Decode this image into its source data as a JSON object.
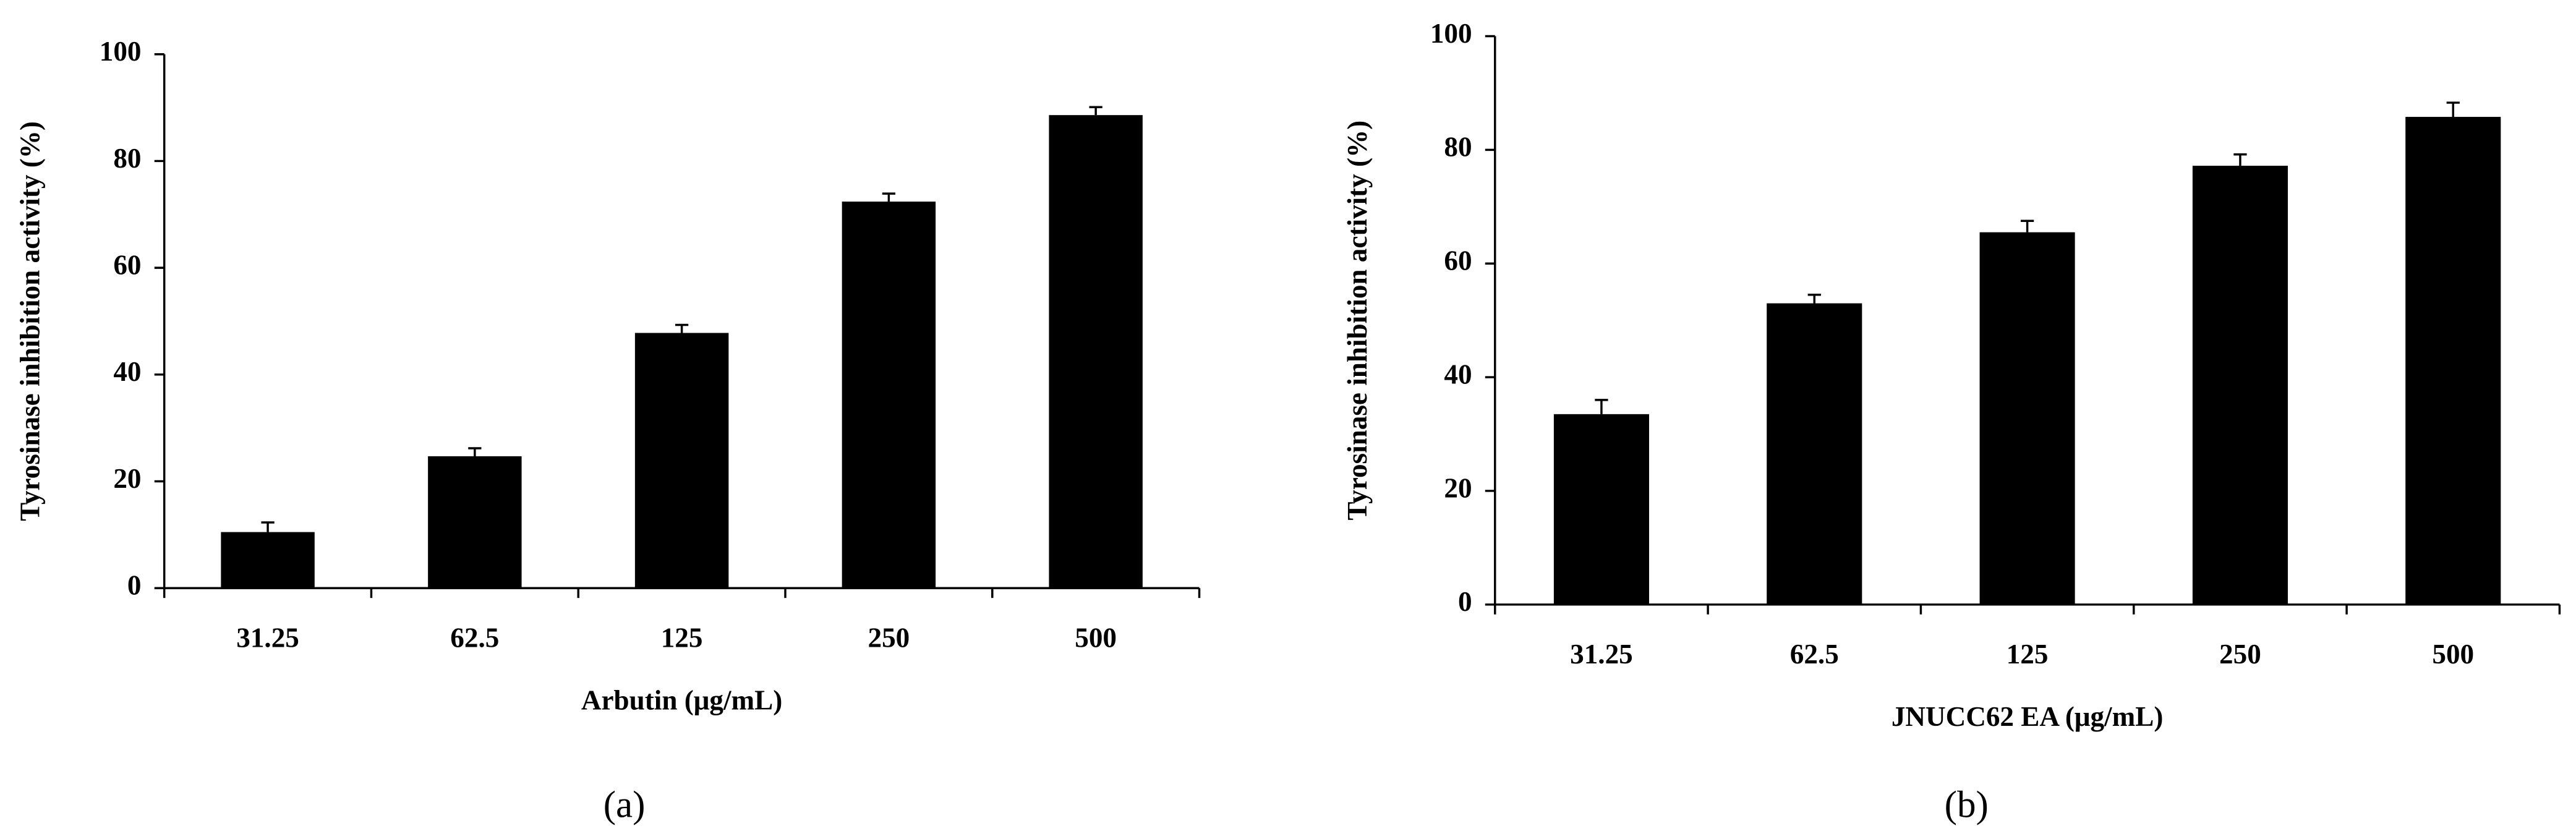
{
  "chart_data": [
    {
      "type": "bar",
      "caption": "(a)",
      "xlabel": "Arbutin (μg/mL)",
      "ylabel": "Tyrosinase inhibition activity (%)",
      "categories": [
        "31.25",
        "62.5",
        "125",
        "250",
        "500"
      ],
      "values": [
        10.5,
        24.7,
        47.8,
        72.4,
        88.6
      ],
      "errors": [
        1.8,
        1.5,
        1.5,
        1.5,
        1.5
      ],
      "color": "#000000",
      "ylim": [
        0,
        100
      ],
      "yticks": [
        0,
        20,
        40,
        60,
        80,
        100
      ]
    },
    {
      "type": "bar",
      "caption": "(b)",
      "xlabel": "JNUCC62 EA (μg/mL)",
      "ylabel": "Tyrosinase inhibition activity (%)",
      "categories": [
        "31.25",
        "62.5",
        "125",
        "250",
        "500"
      ],
      "values": [
        33.5,
        53,
        65.5,
        77.2,
        85.8
      ],
      "errors": [
        2.5,
        1.5,
        2,
        2,
        2.5
      ],
      "color": "#000000",
      "ylim": [
        0,
        100
      ],
      "yticks": [
        0,
        20,
        40,
        60,
        80,
        100
      ]
    }
  ]
}
